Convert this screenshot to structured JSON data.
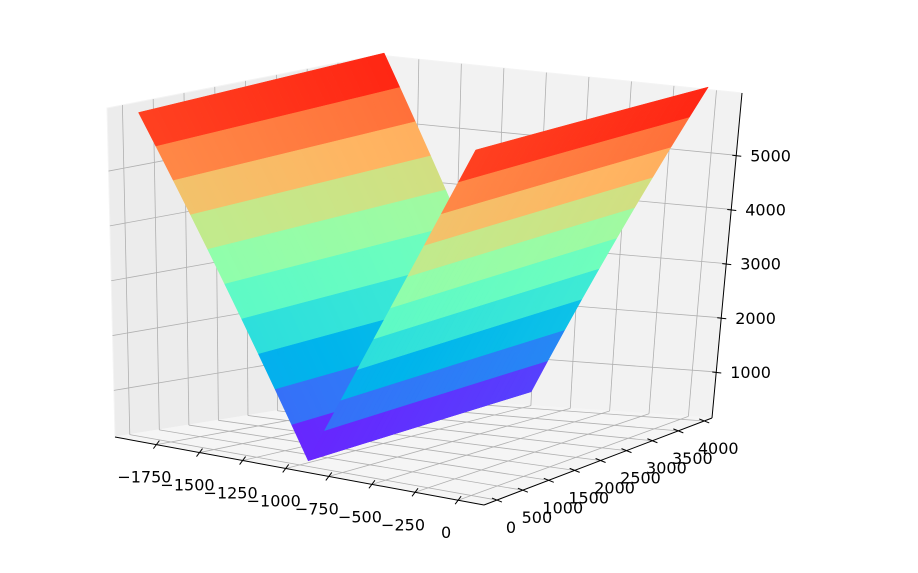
{
  "chart_data": {
    "type": "surface",
    "title": "",
    "xlabel": "",
    "ylabel": "",
    "zlabel": "",
    "colormap": "rainbow",
    "grid": true,
    "xlim": [
      -1990,
      150
    ],
    "ylim": [
      -250,
      4150
    ],
    "zlim": [
      150,
      6150
    ],
    "x_ticks": [
      "−1750",
      "−1500",
      "−1250",
      "−1000",
      "−750",
      "−500",
      "−250",
      "0"
    ],
    "x_tick_values": [
      -1750,
      -1500,
      -1250,
      -1000,
      -750,
      -500,
      -250,
      0
    ],
    "y_ticks": [
      "0",
      "500",
      "1000",
      "1500",
      "2000",
      "2500",
      "3000",
      "3500",
      "4000"
    ],
    "y_tick_values": [
      0,
      500,
      1000,
      1500,
      2000,
      2500,
      3000,
      3500,
      4000
    ],
    "z_ticks": [
      "1000",
      "2000",
      "3000",
      "4000",
      "5000"
    ],
    "z_tick_values": [
      1000,
      2000,
      3000,
      4000,
      5000
    ],
    "surface": {
      "x_range": [
        -1900,
        0
      ],
      "y_range": [
        0,
        4000
      ],
      "shape": "V-shaped valley along y, minimum near x = -950",
      "z_min": 250,
      "z_max": 6100
    }
  }
}
